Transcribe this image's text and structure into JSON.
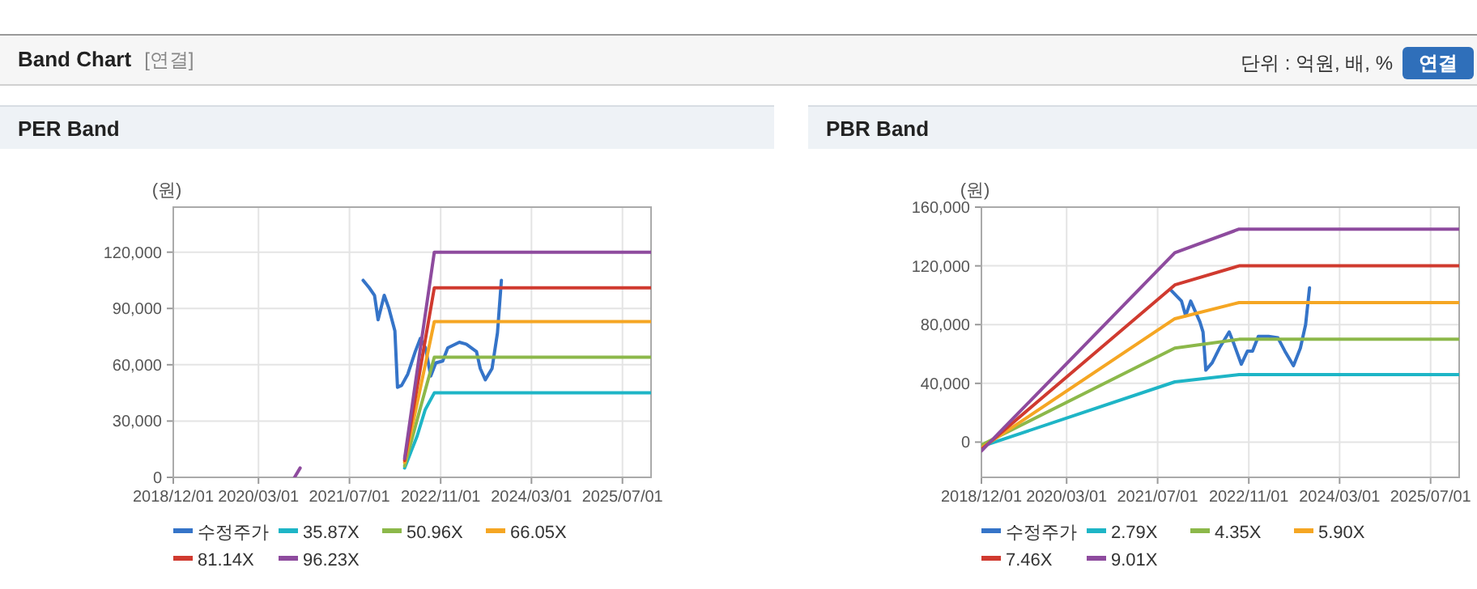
{
  "chart_data": [
    {
      "type": "other",
      "title": "Band Chart",
      "annotations": [
        "[연결]",
        "단위 : 억원, 배, %",
        "연결"
      ]
    },
    {
      "type": "line",
      "title": "PER Band",
      "ylabel": "(원)",
      "grid": true,
      "legend": "bottom",
      "xlim": [
        "2018-12-01",
        "2025-12-01"
      ],
      "xticks": [
        {
          "value": "2018-12-01",
          "label": "2018/12/01"
        },
        {
          "value": "2020-03-01",
          "label": "2020/03/01"
        },
        {
          "value": "2021-07-01",
          "label": "2021/07/01"
        },
        {
          "value": "2022-11-01",
          "label": "2022/11/01"
        },
        {
          "value": "2024-03-01",
          "label": "2024/03/01"
        },
        {
          "value": "2025-07-01",
          "label": "2025/07/01"
        }
      ],
      "ylim": [
        0,
        144000
      ],
      "yticks": [
        {
          "value": 0,
          "label": "0"
        },
        {
          "value": 30000,
          "label": "30,000"
        },
        {
          "value": 60000,
          "label": "60,000"
        },
        {
          "value": 90000,
          "label": "90,000"
        },
        {
          "value": 120000,
          "label": "120,000"
        }
      ],
      "series": [
        {
          "name": "수정주가",
          "color": "#3574c8",
          "x": [
            "2021-09-12",
            "2021-10-15",
            "2021-11-12",
            "2021-12-01",
            "2022-01-03",
            "2022-01-28",
            "2022-03-01",
            "2022-03-15",
            "2022-04-06",
            "2022-05-09",
            "2022-06-18",
            "2022-07-15",
            "2022-08-12",
            "2022-09-09",
            "2022-10-06",
            "2022-11-12",
            "2022-12-09",
            "2023-02-09",
            "2023-03-18",
            "2023-05-12",
            "2023-06-01",
            "2023-06-28",
            "2023-08-03",
            "2023-09-01",
            "2023-09-22"
          ],
          "values": [
            105000,
            101000,
            97000,
            84000,
            97000,
            90000,
            78000,
            48000,
            49000,
            55000,
            67000,
            74000,
            69000,
            54000,
            61000,
            62000,
            69000,
            72000,
            71000,
            67000,
            58000,
            52000,
            58000,
            77000,
            105000
          ]
        },
        {
          "name": "35.87X",
          "color": "#1eb5c6",
          "x": [
            "2022-04-22",
            "2022-06-28",
            "2022-08-10",
            "2022-09-28",
            "2025-12-01"
          ],
          "values": [
            5000,
            22000,
            36000,
            45000,
            45000
          ]
        },
        {
          "name": "50.96X",
          "color": "#8cb84a",
          "x": [
            "2022-04-22",
            "2022-07-10",
            "2022-09-28",
            "2025-12-01"
          ],
          "values": [
            6000,
            35000,
            64000,
            64000
          ]
        },
        {
          "name": "66.05X",
          "color": "#f5a623",
          "x": [
            "2022-04-22",
            "2022-07-10",
            "2022-09-28",
            "2025-12-01"
          ],
          "values": [
            8000,
            45000,
            83000,
            83000
          ]
        },
        {
          "name": "81.14X",
          "color": "#d03a2f",
          "x": [
            "2022-04-22",
            "2022-07-10",
            "2022-09-28",
            "2025-12-01"
          ],
          "values": [
            9000,
            55000,
            101000,
            101000
          ]
        },
        {
          "name": "96.23X",
          "color": "#8e4b9e",
          "x": [
            "2020-09-10",
            "2020-10-10",
            "2021-06-01",
            "2022-04-22",
            "2022-07-10",
            "2022-09-28",
            "2025-12-01"
          ],
          "values": [
            0,
            5000,
            null,
            10000,
            65000,
            120000,
            120000
          ]
        }
      ]
    },
    {
      "type": "line",
      "title": "PBR Band",
      "ylabel": "(원)",
      "grid": true,
      "legend": "bottom",
      "xlim": [
        "2018-12-01",
        "2025-12-01"
      ],
      "xticks": [
        {
          "value": "2018-12-01",
          "label": "2018/12/01"
        },
        {
          "value": "2020-03-01",
          "label": "2020/03/01"
        },
        {
          "value": "2021-07-01",
          "label": "2021/07/01"
        },
        {
          "value": "2022-11-01",
          "label": "2022/11/01"
        },
        {
          "value": "2024-03-01",
          "label": "2024/03/01"
        },
        {
          "value": "2025-07-01",
          "label": "2025/07/01"
        }
      ],
      "ylim": [
        -24000,
        160000
      ],
      "yticks": [
        {
          "value": 0,
          "label": "0"
        },
        {
          "value": 40000,
          "label": "40,000"
        },
        {
          "value": 80000,
          "label": "80,000"
        },
        {
          "value": 120000,
          "label": "120,000"
        },
        {
          "value": 160000,
          "label": "160,000"
        }
      ],
      "series": [
        {
          "name": "수정주가",
          "color": "#3574c8",
          "x": [
            "2021-09-06",
            "2021-11-06",
            "2021-11-28",
            "2021-12-25",
            "2022-02-12",
            "2022-03-01",
            "2022-03-16",
            "2022-04-19",
            "2022-06-01",
            "2022-07-19",
            "2022-08-13",
            "2022-09-22",
            "2022-10-25",
            "2022-11-21",
            "2022-12-22",
            "2023-02-15",
            "2023-04-06",
            "2023-05-13",
            "2023-06-28",
            "2023-08-04",
            "2023-09-01",
            "2023-09-22"
          ],
          "values": [
            104000,
            96000,
            86000,
            96000,
            82000,
            75000,
            49000,
            54000,
            65000,
            75000,
            67000,
            53000,
            62000,
            62000,
            72000,
            72000,
            71000,
            62000,
            52000,
            64000,
            80000,
            105000
          ]
        },
        {
          "name": "2.79X",
          "color": "#1eb5c6",
          "x": [
            "2018-12-01",
            "2021-10-01",
            "2022-09-10",
            "2025-12-01"
          ],
          "values": [
            -3000,
            41000,
            46000,
            46000
          ]
        },
        {
          "name": "4.35X",
          "color": "#8cb84a",
          "x": [
            "2018-12-01",
            "2021-10-01",
            "2022-09-10",
            "2025-12-01"
          ],
          "values": [
            -2000,
            64000,
            70000,
            70000
          ]
        },
        {
          "name": "5.90X",
          "color": "#f5a623",
          "x": [
            "2018-12-01",
            "2021-10-01",
            "2022-09-10",
            "2025-12-01"
          ],
          "values": [
            -4000,
            84000,
            95000,
            95000
          ]
        },
        {
          "name": "7.46X",
          "color": "#d03a2f",
          "x": [
            "2018-12-01",
            "2021-10-01",
            "2022-09-10",
            "2025-12-01"
          ],
          "values": [
            -5000,
            107000,
            120000,
            120000
          ]
        },
        {
          "name": "9.01X",
          "color": "#8e4b9e",
          "x": [
            "2018-12-01",
            "2021-10-01",
            "2022-09-10",
            "2025-12-01"
          ],
          "values": [
            -6000,
            129000,
            145000,
            145000
          ]
        }
      ]
    }
  ]
}
